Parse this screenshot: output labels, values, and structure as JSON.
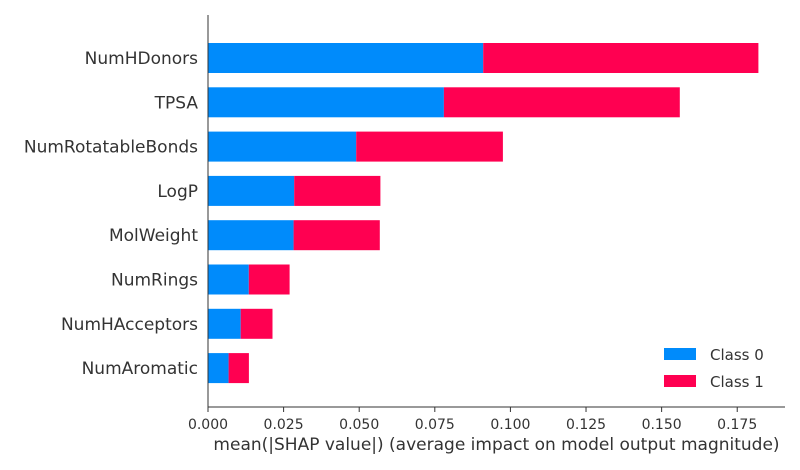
{
  "chart_data": {
    "type": "bar",
    "orientation": "horizontal",
    "stacked": true,
    "title": "",
    "xlabel": "mean(|SHAP value|) (average impact on model output magnitude)",
    "ylabel": "",
    "categories": [
      "NumHDonors",
      "TPSA",
      "NumRotatableBonds",
      "LogP",
      "MolWeight",
      "NumRings",
      "NumHAcceptors",
      "NumAromatic"
    ],
    "series": [
      {
        "name": "Class 0",
        "color": "#008bfb",
        "values": [
          0.091,
          0.078,
          0.049,
          0.0285,
          0.0283,
          0.0135,
          0.0108,
          0.0068
        ]
      },
      {
        "name": "Class 1",
        "color": "#ff0051",
        "values": [
          0.091,
          0.078,
          0.0485,
          0.0285,
          0.0285,
          0.0135,
          0.0105,
          0.0067
        ]
      }
    ],
    "xlim": [
      0,
      0.19
    ],
    "xticks": [
      "0.000",
      "0.025",
      "0.050",
      "0.075",
      "0.100",
      "0.125",
      "0.150",
      "0.175"
    ],
    "grid": false,
    "legend_position": "bottom-right"
  }
}
